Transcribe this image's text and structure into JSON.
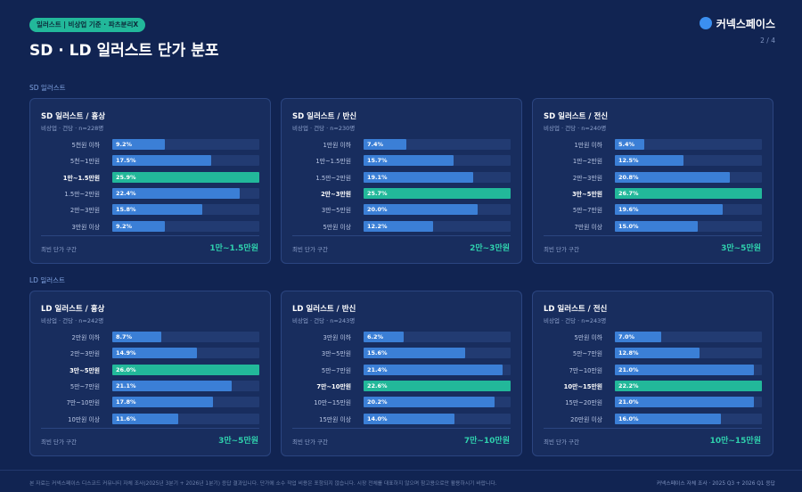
{
  "header": {
    "badge": "일러스트 | 비상업 기준 · 파츠분리X",
    "title": "SD · LD 일러스트 단가 분포",
    "logo": "커넥스페이스",
    "page": "2 / 4"
  },
  "sections": [
    {
      "label": "SD 일러스트"
    },
    {
      "label": "LD 일러스트"
    }
  ],
  "chart_data": [
    {
      "type": "bar",
      "orientation": "horizontal",
      "title": "SD 일러스트 / 흉상",
      "subtitle": "비상업 · 건당 · n=228명",
      "categories": [
        "5천원 이하",
        "5천~1만원",
        "1만~1.5만원",
        "1.5만~2만원",
        "2만~3만원",
        "3만원 이상"
      ],
      "values": [
        9.2,
        17.5,
        25.9,
        22.4,
        15.8,
        9.2
      ],
      "value_labels": [
        "9.2%",
        "17.5%",
        "25.9%",
        "22.4%",
        "15.8%",
        "9.2%"
      ],
      "colors": [
        "#3b7fd6",
        "#3b7fd6",
        "#22b89a",
        "#3b7fd6",
        "#3b7fd6",
        "#3b7fd6"
      ],
      "mode_label": "최빈 단가 구간",
      "mode": "1만~1.5만원"
    },
    {
      "type": "bar",
      "orientation": "horizontal",
      "title": "SD 일러스트 / 반신",
      "subtitle": "비상업 · 건당 · n=230명",
      "categories": [
        "1만원 이하",
        "1만~1.5만원",
        "1.5만~2만원",
        "2만~3만원",
        "3만~5만원",
        "5만원 이상"
      ],
      "values": [
        7.4,
        15.7,
        19.1,
        25.7,
        20.0,
        12.2
      ],
      "value_labels": [
        "7.4%",
        "15.7%",
        "19.1%",
        "25.7%",
        "20.0%",
        "12.2%"
      ],
      "colors": [
        "#3b7fd6",
        "#3b7fd6",
        "#3b7fd6",
        "#22b89a",
        "#3b7fd6",
        "#3b7fd6"
      ],
      "mode_label": "최빈 단가 구간",
      "mode": "2만~3만원"
    },
    {
      "type": "bar",
      "orientation": "horizontal",
      "title": "SD 일러스트 / 전신",
      "subtitle": "비상업 · 건당 · n=240명",
      "categories": [
        "1만원 이하",
        "1만~2만원",
        "2만~3만원",
        "3만~5만원",
        "5만~7만원",
        "7만원 이상"
      ],
      "values": [
        5.4,
        12.5,
        20.8,
        26.7,
        19.6,
        15.0
      ],
      "value_labels": [
        "5.4%",
        "12.5%",
        "20.8%",
        "26.7%",
        "19.6%",
        "15.0%"
      ],
      "colors": [
        "#3b7fd6",
        "#3b7fd6",
        "#3b7fd6",
        "#22b89a",
        "#3b7fd6",
        "#3b7fd6"
      ],
      "mode_label": "최빈 단가 구간",
      "mode": "3만~5만원"
    },
    {
      "type": "bar",
      "orientation": "horizontal",
      "title": "LD 일러스트 / 흉상",
      "subtitle": "비상업 · 건당 · n=242명",
      "categories": [
        "2만원 이하",
        "2만~3만원",
        "3만~5만원",
        "5만~7만원",
        "7만~10만원",
        "10만원 이상"
      ],
      "values": [
        8.7,
        14.9,
        26.0,
        21.1,
        17.8,
        11.6
      ],
      "value_labels": [
        "8.7%",
        "14.9%",
        "26.0%",
        "21.1%",
        "17.8%",
        "11.6%"
      ],
      "colors": [
        "#3b7fd6",
        "#3b7fd6",
        "#22b89a",
        "#3b7fd6",
        "#3b7fd6",
        "#3b7fd6"
      ],
      "mode_label": "최빈 단가 구간",
      "mode": "3만~5만원"
    },
    {
      "type": "bar",
      "orientation": "horizontal",
      "title": "LD 일러스트 / 반신",
      "subtitle": "비상업 · 건당 · n=243명",
      "categories": [
        "3만원 이하",
        "3만~5만원",
        "5만~7만원",
        "7만~10만원",
        "10만~15만원",
        "15만원 이상"
      ],
      "values": [
        6.2,
        15.6,
        21.4,
        22.6,
        20.2,
        14.0
      ],
      "value_labels": [
        "6.2%",
        "15.6%",
        "21.4%",
        "22.6%",
        "20.2%",
        "14.0%"
      ],
      "colors": [
        "#3b7fd6",
        "#3b7fd6",
        "#3b7fd6",
        "#22b89a",
        "#3b7fd6",
        "#3b7fd6"
      ],
      "mode_label": "최빈 단가 구간",
      "mode": "7만~10만원"
    },
    {
      "type": "bar",
      "orientation": "horizontal",
      "title": "LD 일러스트 / 전신",
      "subtitle": "비상업 · 건당 · n=243명",
      "categories": [
        "5만원 이하",
        "5만~7만원",
        "7만~10만원",
        "10만~15만원",
        "15만~20만원",
        "20만원 이상"
      ],
      "values": [
        7.0,
        12.8,
        21.0,
        22.2,
        21.0,
        16.0
      ],
      "value_labels": [
        "7.0%",
        "12.8%",
        "21.0%",
        "22.2%",
        "21.0%",
        "16.0%"
      ],
      "colors": [
        "#3b7fd6",
        "#3b7fd6",
        "#3b7fd6",
        "#22b89a",
        "#3b7fd6",
        "#3b7fd6"
      ],
      "mode_label": "최빈 단가 구간",
      "mode": "10만~15만원"
    }
  ],
  "footer": {
    "note": "본 자료는 커넥스페이스 디스코드 커뮤니티 자체 조사(2025년 3분기 + 2026년 1분기) 응답 결과입니다. 단가에 소수 작업 비용은 포함되지 않습니다. 시장 전체를 대표하지 않으며 참고용으로만 활용하시기 바랍니다.",
    "source": "커넥스페이스 자체 조사 · 2025 Q3 + 2026 Q1 응답"
  }
}
